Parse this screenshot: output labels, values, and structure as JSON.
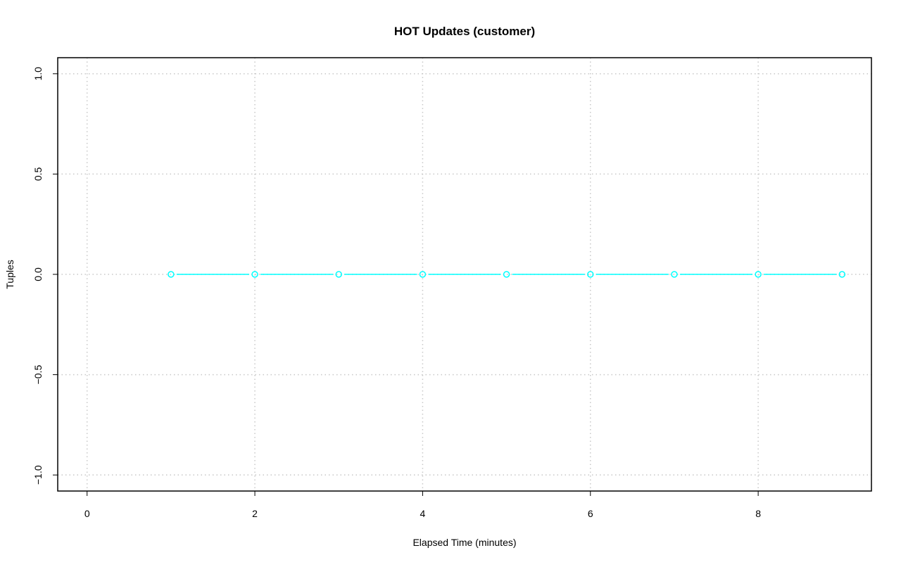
{
  "chart_data": {
    "type": "line",
    "title": "HOT Updates (customer)",
    "xlabel": "Elapsed Time (minutes)",
    "ylabel": "Tuples",
    "xlim": [
      -0.35,
      9.35
    ],
    "ylim": [
      -1.08,
      1.08
    ],
    "xticks": [
      0,
      2,
      4,
      6,
      8
    ],
    "yticks": [
      -1.0,
      -0.5,
      0.0,
      0.5,
      1.0
    ],
    "ytick_labels": [
      "−1.0",
      "−0.5",
      "0.0",
      "0.5",
      "1.0"
    ],
    "grid": true,
    "series": [
      {
        "color": "#00FFFF",
        "x": [
          1,
          2,
          3,
          4,
          5,
          6,
          7,
          8,
          9
        ],
        "y": [
          0,
          0,
          0,
          0,
          0,
          0,
          0,
          0,
          0
        ]
      }
    ]
  }
}
